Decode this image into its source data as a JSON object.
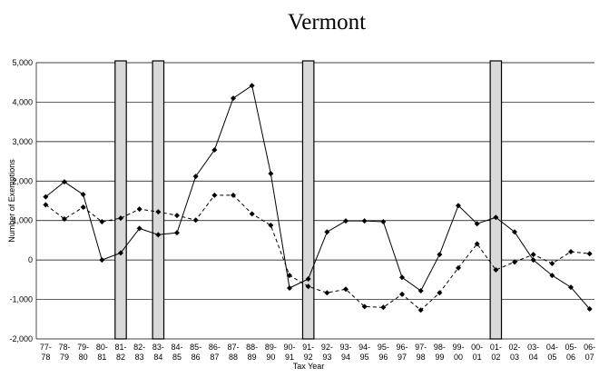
{
  "chart_data": {
    "type": "line",
    "title": "Vermont",
    "y_label": "Number of Exemptions",
    "x_label": "Tax Year",
    "categories": [
      "77-78",
      "78-79",
      "79-80",
      "80-81",
      "81-82",
      "82-83",
      "83-84",
      "84-85",
      "85-86",
      "86-87",
      "87-88",
      "88-89",
      "89-90",
      "90-91",
      "91-92",
      "92-93",
      "93-94",
      "94-95",
      "95-96",
      "96-97",
      "97-98",
      "98-99",
      "99-00",
      "00-01",
      "01-02",
      "02-03",
      "03-04",
      "04-05",
      "05-06",
      "06-07"
    ],
    "series": [
      {
        "color": "#000000",
        "dash": false,
        "values": [
          1600,
          1980,
          1660,
          0,
          180,
          800,
          640,
          690,
          2120,
          2790,
          4100,
          4420,
          2190,
          -710,
          -480,
          710,
          990,
          990,
          970,
          -440,
          -780,
          140,
          1380,
          920,
          1080,
          710,
          0,
          -390,
          -690,
          -1240
        ]
      },
      {
        "color": "#000000",
        "dash": true,
        "values": [
          1400,
          1040,
          1340,
          970,
          1060,
          1290,
          1220,
          1130,
          1010,
          1640,
          1640,
          1170,
          880,
          -390,
          -670,
          -830,
          -740,
          -1180,
          -1200,
          -870,
          -1270,
          -830,
          -200,
          410,
          -250,
          -50,
          140,
          -90,
          210,
          160
        ]
      }
    ],
    "shaded_categories": [
      "81-82",
      "83-84",
      "91-92",
      "01-02"
    ],
    "ylim": [
      -2000,
      5000
    ],
    "yticks": [
      {
        "value": -2000,
        "label": "-2,000"
      },
      {
        "value": -1000,
        "label": "-1,000"
      },
      0,
      {
        "value": 1000,
        "label": "1,000"
      },
      {
        "value": 2000,
        "label": "2,000"
      },
      {
        "value": 3000,
        "label": "3,000"
      },
      {
        "value": 4000,
        "label": "4,000"
      },
      {
        "value": 5000,
        "label": "5,000"
      }
    ],
    "grid": true
  }
}
